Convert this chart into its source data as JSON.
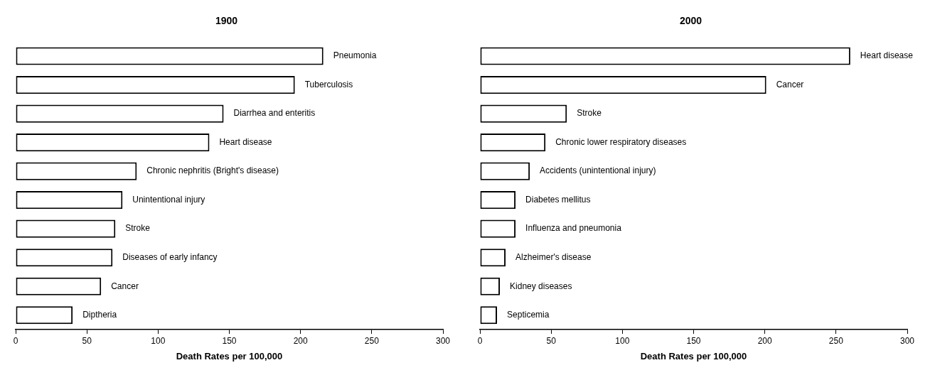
{
  "chart_data": [
    {
      "type": "bar",
      "orientation": "horizontal",
      "title": "1900",
      "xlabel": "Death Rates per 100,000",
      "categories": [
        "Pneumonia",
        "Tuberculosis",
        "Diarrhea and enteritis",
        "Heart disease",
        "Chronic nephritis (Bright's disease)",
        "Unintentional injury",
        "Stroke",
        "Diseases of early infancy",
        "Cancer",
        "Diptheria"
      ],
      "values": [
        216,
        196,
        146,
        136,
        85,
        75,
        70,
        68,
        60,
        40
      ],
      "color": "#ffffff",
      "xlim": [
        0,
        300
      ],
      "xticks": [
        0,
        50,
        100,
        150,
        200,
        250,
        300
      ],
      "grid": false,
      "legend": false
    },
    {
      "type": "bar",
      "orientation": "horizontal",
      "title": "2000",
      "xlabel": "Death Rates per 100,000",
      "categories": [
        "Heart disease",
        "Cancer",
        "Stroke",
        "Chronic lower respiratory diseases",
        "Accidents (unintentional injury)",
        "Diabetes mellitus",
        "Influenza and pneumonia",
        "Alzheimer's disease",
        "Kidney diseases",
        "Septicemia"
      ],
      "values": [
        260,
        201,
        61,
        46,
        35,
        25,
        25,
        18,
        14,
        12
      ],
      "color": "#ffffff",
      "xlim": [
        0,
        300
      ],
      "xticks": [
        0,
        50,
        100,
        150,
        200,
        250,
        300
      ],
      "grid": false,
      "legend": false
    }
  ]
}
